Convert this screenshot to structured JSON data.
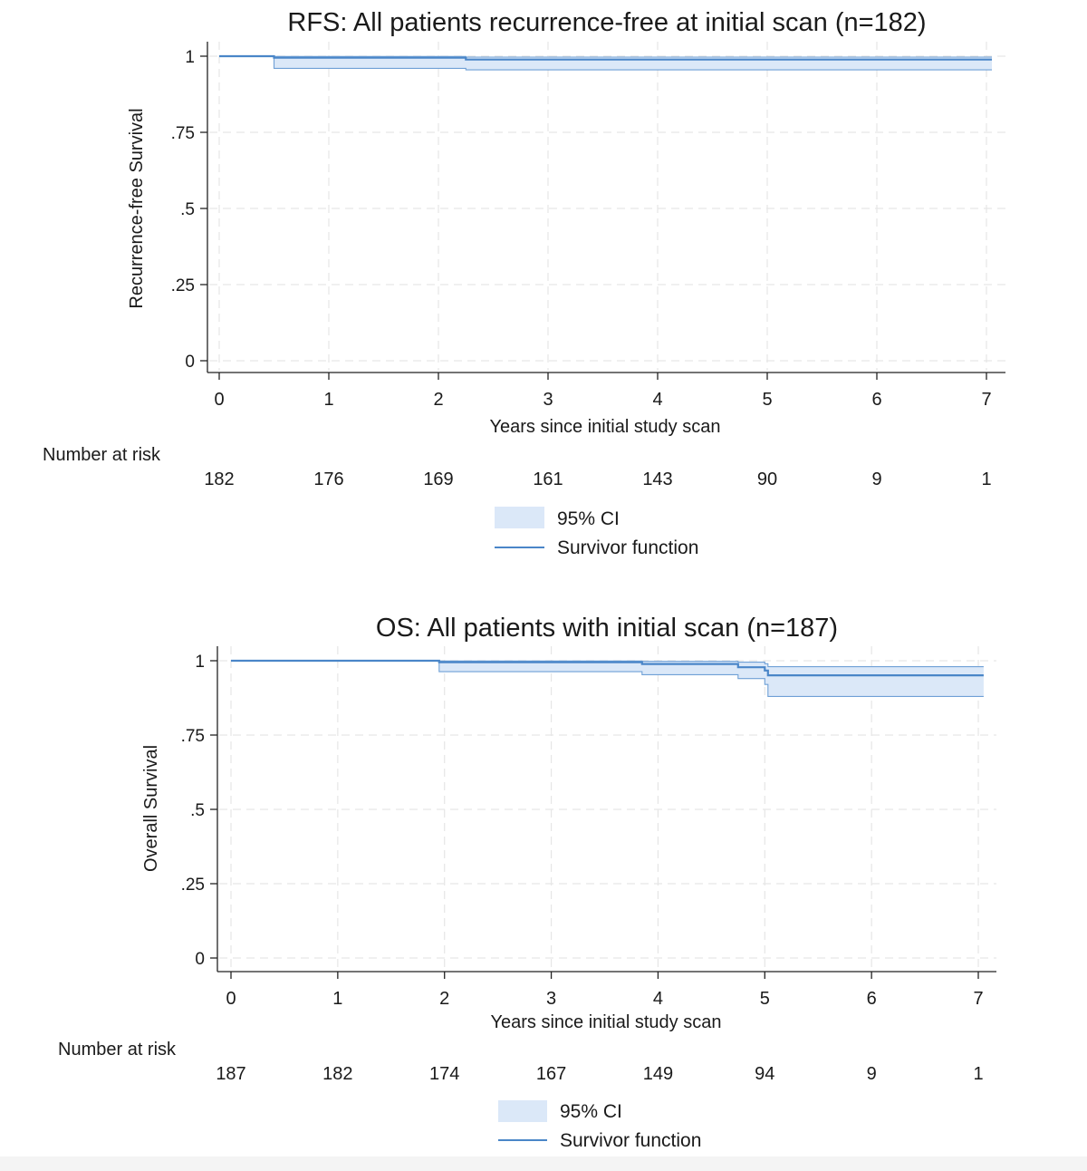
{
  "colors": {
    "line": "#4a86c8",
    "ci_fill": "#dbe8f8",
    "ci_edge": "#6fa0d6",
    "grid": "#e6e6e6",
    "axis": "#222222"
  },
  "chart_data": [
    {
      "type": "line",
      "title": "RFS: All patients recurrence-free at initial scan (n=182)",
      "xlabel": "Years since initial study scan",
      "ylabel": "Recurrence-free Survival",
      "xlim": [
        0,
        7
      ],
      "ylim": [
        0,
        1
      ],
      "x_ticks": [
        "0",
        "1",
        "2",
        "3",
        "4",
        "5",
        "6",
        "7"
      ],
      "y_ticks": [
        "0",
        ".25",
        ".5",
        ".75",
        "1"
      ],
      "grid": true,
      "risk_table": {
        "label": "Number at risk",
        "times": [
          0,
          1,
          2,
          3,
          4,
          5,
          6,
          7
        ],
        "values": [
          "182",
          "176",
          "169",
          "161",
          "143",
          "90",
          "9",
          "1"
        ]
      },
      "legend": {
        "placement": "bottom-center",
        "ci_label": "95% CI",
        "line_label": "Survivor function"
      },
      "series": [
        {
          "name": "Survivor function",
          "x": [
            0,
            0.5,
            2.25,
            7.05
          ],
          "y": [
            1.0,
            0.995,
            0.989,
            0.989
          ],
          "ci_lower": [
            1.0,
            0.96,
            0.955,
            0.955
          ],
          "ci_upper": [
            1.0,
            0.999,
            0.997,
            0.997
          ]
        }
      ]
    },
    {
      "type": "line",
      "title": "OS: All patients with initial scan (n=187)",
      "xlabel": "Years since initial study scan",
      "ylabel": "Overall Survival",
      "xlim": [
        0,
        7
      ],
      "ylim": [
        0,
        1
      ],
      "x_ticks": [
        "0",
        "1",
        "2",
        "3",
        "4",
        "5",
        "6",
        "7"
      ],
      "y_ticks": [
        "0",
        ".25",
        ".5",
        ".75",
        "1"
      ],
      "grid": true,
      "risk_table": {
        "label": "Number at risk",
        "times": [
          0,
          1,
          2,
          3,
          4,
          5,
          6,
          7
        ],
        "values": [
          "187",
          "182",
          "174",
          "167",
          "149",
          "94",
          "9",
          "1"
        ]
      },
      "legend": {
        "placement": "bottom-center",
        "ci_label": "95% CI",
        "line_label": "Survivor function"
      },
      "series": [
        {
          "name": "Survivor function",
          "x": [
            0,
            1.95,
            3.85,
            4.75,
            5.0,
            5.03,
            7.05
          ],
          "y": [
            1.0,
            0.995,
            0.989,
            0.978,
            0.967,
            0.951,
            0.951
          ],
          "ci_lower": [
            1.0,
            0.963,
            0.953,
            0.94,
            0.92,
            0.88,
            0.88
          ],
          "ci_upper": [
            1.0,
            0.999,
            0.998,
            0.995,
            0.99,
            0.98,
            0.98
          ]
        }
      ]
    }
  ]
}
